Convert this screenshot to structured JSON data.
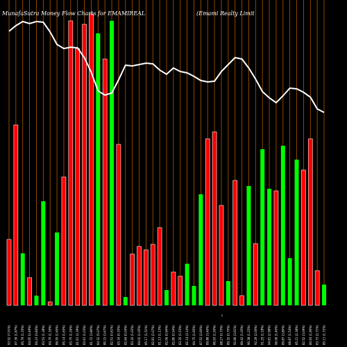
{
  "chart_data": {
    "type": "bar",
    "title": "MunafaSutra  Money  Flow  Charts  for  EMAMIREAL",
    "subtitle": "(Emami    Realty  Limit",
    "xlabel": "",
    "ylabel": "",
    "colors": {
      "up": "#00ff00",
      "down": "#ff0000",
      "line": "#ffffff",
      "grid": "#b25a00",
      "background": "#000000"
    },
    "categories": [
      "93.52 (7.01%)",
      "87.39 (1.87%)",
      "85.79 (1.35%)",
      "84.65 (0.49%)",
      "84.23 (0.84%)",
      "83.53 (1.38%)",
      "84.70 (1.16%)",
      "86.55 (1.65%)",
      "85.14 (1.65%)",
      "83.75 (1.26%)",
      "81.61 (2.39%)",
      "83.61 (1.03%)",
      "81.72 (3.80%)",
      "84.32 (5.07%)",
      "80.15 (3.67%)",
      "82.51 (0.61%)",
      "83.16 (0.35%)",
      "82.64 (0.04%)",
      "83.16 (1.02%)",
      "84.02 (1.05%)",
      "85.17 (1.51%)",
      "82.81 (2.07%)",
      "81.13 (1.13%)",
      "82.06 (0.94%)",
      "82.80 (0.54%)",
      "83.35 (1.53%)",
      "82.14 (3.14%)",
      "84.75 (1.65%)",
      "87.52 (2.60%)",
      "89.88 (3.40%)",
      "86.93 (1.50%)",
      "88.27 (0.75%)",
      "89.32 (0.70%)",
      "92.66 (3.61%)",
      "89.43 (1.05%)",
      "90.38 (1.25%)",
      "92.29 (2.00%)",
      "91.25 (1.18%)",
      "94.81 (2.98%)",
      "96.06 (1.40%)",
      "89.87 (3.80%)",
      "88.87 (1.54%)",
      "85.21 (2.38%)",
      "82.52 (3.09%)",
      "80.93 (1.90%)",
      "83.73 (2.71%)",
      "85.11 (1.72%)"
    ],
    "footnote": "c",
    "series": [
      {
        "values": [
          95,
          260,
          75,
          40,
          14,
          150,
          5,
          105,
          185,
          410,
          370,
          405,
          420,
          392,
          355,
          410,
          232,
          12,
          74,
          85,
          80,
          88,
          112,
          22,
          48,
          42,
          60,
          28,
          160,
          240,
          250,
          144,
          35,
          180,
          14,
          172,
          89,
          225,
          168,
          165,
          230,
          68,
          210,
          195,
          240,
          50,
          30
        ]
      }
    ],
    "directions": [
      "down",
      "down",
      "up",
      "down",
      "up",
      "up",
      "down",
      "up",
      "down",
      "down",
      "down",
      "down",
      "down",
      "up",
      "down",
      "up",
      "down",
      "up",
      "down",
      "down",
      "down",
      "down",
      "down",
      "up",
      "down",
      "down",
      "up",
      "up",
      "up",
      "down",
      "down",
      "down",
      "up",
      "down",
      "down",
      "up",
      "down",
      "up",
      "up",
      "down",
      "up",
      "up",
      "up",
      "down",
      "down",
      "down",
      "up"
    ],
    "line": [
      395,
      403,
      409,
      406,
      409,
      408,
      394,
      376,
      370,
      372,
      371,
      357,
      336,
      309,
      303,
      306,
      325,
      346,
      345,
      347,
      349,
      348,
      339,
      333,
      342,
      337,
      335,
      330,
      324,
      322,
      323,
      337,
      347,
      357,
      355,
      342,
      326,
      308,
      299,
      292,
      302,
      313,
      312,
      307,
      300,
      283,
      278
    ],
    "ylim": [
      0,
      440
    ]
  }
}
